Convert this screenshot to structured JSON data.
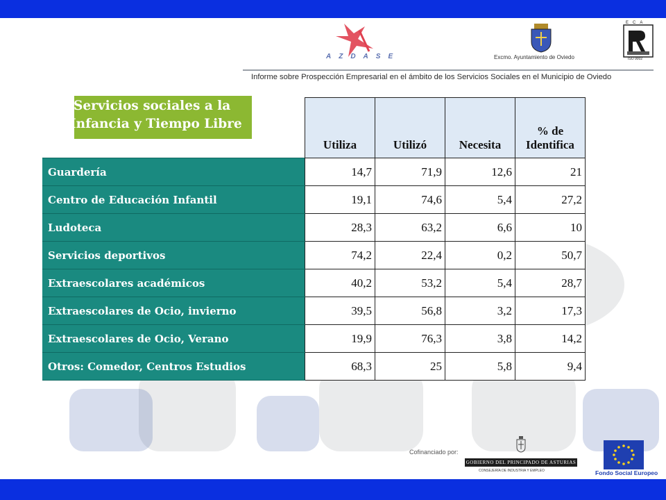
{
  "header": {
    "azdase_logo_text": "AZDASE",
    "ayuntamiento": "Excmo. Ayuntamiento de Oviedo",
    "eca_letters": "ECA",
    "eca_iso": "ISO 9002",
    "report_title": "Informe sobre Prospección Empresarial en el ámbito de los Servicios Sociales en el Municipio de Oviedo"
  },
  "section_title": {
    "line1": "Servicios sociales a la",
    "line2": "Infancia y Tiempo Libre"
  },
  "table": {
    "columns": [
      "Utiliza",
      "Utilizó",
      "Necesita",
      "% de Identifica"
    ],
    "rows": [
      {
        "label": "Guardería",
        "values": [
          "14,7",
          "71,9",
          "12,6",
          "21"
        ]
      },
      {
        "label": "Centro de Educación Infantil",
        "values": [
          "19,1",
          "74,6",
          "5,4",
          "27,2"
        ]
      },
      {
        "label": "Ludoteca",
        "values": [
          "28,3",
          "63,2",
          "6,6",
          "10"
        ]
      },
      {
        "label": "Servicios deportivos",
        "values": [
          "74,2",
          "22,4",
          "0,2",
          "50,7"
        ]
      },
      {
        "label": "Extraescolares académicos",
        "values": [
          "40,2",
          "53,2",
          "5,4",
          "28,7"
        ]
      },
      {
        "label": "Extraescolares de Ocio, invierno",
        "values": [
          "39,5",
          "56,8",
          "3,2",
          "17,3"
        ]
      },
      {
        "label": "Extraescolares de Ocio, Verano",
        "values": [
          "19,9",
          "76,3",
          "3,8",
          "14,2"
        ]
      },
      {
        "label": "Otros: Comedor, Centros Estudios",
        "values": [
          "68,3",
          "25",
          "5,8",
          "9,4"
        ]
      }
    ]
  },
  "footer": {
    "cofinanciado": "Cofinanciado por:",
    "gobierno": "GOBIERNO DEL PRINCIPADO DE ASTURIAS",
    "consejeria": "CONSEJERÍA DE INDUSTRIA Y EMPLEO",
    "fse": "Fondo Social Europeo"
  },
  "colors": {
    "top_bar": "#0a2fe0",
    "title_green": "#8cb832",
    "row_teal": "#1a8a80",
    "header_cell": "#dee9f5"
  }
}
